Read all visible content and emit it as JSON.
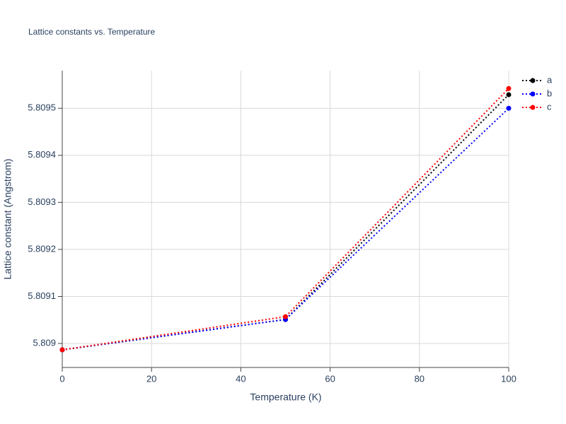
{
  "chart_data": {
    "type": "line",
    "title": "Lattice constants vs. Temperature",
    "x_label": "Temperature (K)",
    "y_label": "Lattice constant (Angstrom)",
    "x": [
      0,
      50,
      100
    ],
    "series": [
      {
        "name": "a",
        "color": "#000000",
        "values": [
          5.8089865,
          5.809051,
          5.809529
        ]
      },
      {
        "name": "b",
        "color": "#0000ff",
        "values": [
          5.8089865,
          5.809051,
          5.8095
        ]
      },
      {
        "name": "c",
        "color": "#ff0000",
        "values": [
          5.8089865,
          5.809057,
          5.809542
        ]
      }
    ],
    "xlim": [
      0,
      100
    ],
    "xticks": [
      0,
      20,
      40,
      60,
      80,
      100
    ],
    "ylim": [
      5.808949,
      5.80958
    ],
    "yticks": [
      5.809,
      5.8091,
      5.8092,
      5.8093,
      5.8094,
      5.8095
    ],
    "grid": true,
    "legend": "top-right"
  }
}
